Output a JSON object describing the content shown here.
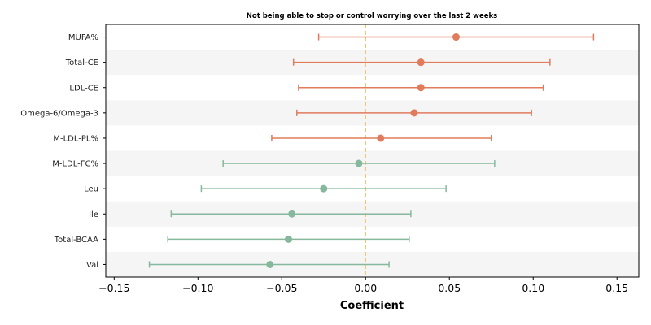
{
  "chart_data": {
    "type": "forest",
    "title": "Not being able to stop or control worrying over the last 2 weeks",
    "xlabel": "Coefficient",
    "ylabel": "",
    "xlim": [
      -0.155,
      0.163
    ],
    "xticks": [
      -0.15,
      -0.1,
      -0.05,
      0.0,
      0.05,
      0.1,
      0.15
    ],
    "xtick_labels": [
      "−0.15",
      "−0.10",
      "−0.05",
      "0.00",
      "0.05",
      "0.10",
      "0.15"
    ],
    "reference_line": 0.0,
    "grid": false,
    "row_banding": true,
    "colors": {
      "positive": "#e07b5c",
      "negative": "#86b89d",
      "reference": "#f2c46d",
      "band": "#f5f5f5"
    },
    "rows": [
      {
        "label": "MUFA%",
        "estimate": 0.054,
        "ci_low": -0.028,
        "ci_high": 0.136
      },
      {
        "label": "Total-CE",
        "estimate": 0.033,
        "ci_low": -0.043,
        "ci_high": 0.11
      },
      {
        "label": "LDL-CE",
        "estimate": 0.033,
        "ci_low": -0.04,
        "ci_high": 0.106
      },
      {
        "label": "Omega-6/Omega-3",
        "estimate": 0.029,
        "ci_low": -0.041,
        "ci_high": 0.099
      },
      {
        "label": "M-LDL-PL%",
        "estimate": 0.009,
        "ci_low": -0.056,
        "ci_high": 0.075
      },
      {
        "label": "M-LDL-FC%",
        "estimate": -0.004,
        "ci_low": -0.085,
        "ci_high": 0.077
      },
      {
        "label": "Leu",
        "estimate": -0.025,
        "ci_low": -0.098,
        "ci_high": 0.048
      },
      {
        "label": "Ile",
        "estimate": -0.044,
        "ci_low": -0.116,
        "ci_high": 0.027
      },
      {
        "label": "Total-BCAA",
        "estimate": -0.046,
        "ci_low": -0.118,
        "ci_high": 0.026
      },
      {
        "label": "Val",
        "estimate": -0.057,
        "ci_low": -0.129,
        "ci_high": 0.014
      }
    ]
  }
}
